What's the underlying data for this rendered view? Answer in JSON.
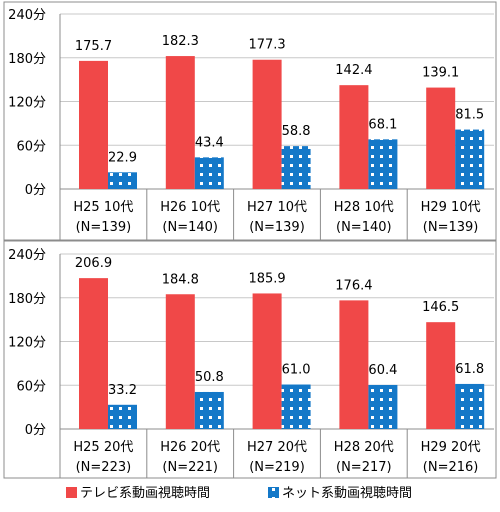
{
  "legend": [
    {
      "label": "テレビ系動画視聴時間",
      "color": "#f04848",
      "pattern": "solid"
    },
    {
      "label": "ネット系動画視聴時間",
      "color": "#1478c8",
      "pattern": "dotted"
    }
  ],
  "chart_data": [
    {
      "type": "bar",
      "ylim": [
        0,
        240
      ],
      "yticks": [
        "0分",
        "60分",
        "120分",
        "180分",
        "240分"
      ],
      "categories": [
        {
          "line1": "H25 10代",
          "line2": "(N=139)"
        },
        {
          "line1": "H26 10代",
          "line2": "(N=140)"
        },
        {
          "line1": "H27 10代",
          "line2": "(N=139)"
        },
        {
          "line1": "H28 10代",
          "line2": "(N=140)"
        },
        {
          "line1": "H29 10代",
          "line2": "(N=139)"
        }
      ],
      "series": [
        {
          "name": "テレビ系動画視聴時間",
          "values": [
            175.7,
            182.3,
            177.3,
            142.4,
            139.1
          ],
          "labels": [
            "175.7",
            "182.3",
            "177.3",
            "142.4",
            "139.1"
          ]
        },
        {
          "name": "ネット系動画視聴時間",
          "values": [
            22.9,
            43.4,
            58.8,
            68.1,
            81.5
          ],
          "labels": [
            "22.9",
            "43.4",
            "58.8",
            "68.1",
            "81.5"
          ]
        }
      ],
      "grid": true
    },
    {
      "type": "bar",
      "ylim": [
        0,
        240
      ],
      "yticks": [
        "0分",
        "60分",
        "120分",
        "180分",
        "240分"
      ],
      "categories": [
        {
          "line1": "H25 20代",
          "line2": "(N=223)"
        },
        {
          "line1": "H26 20代",
          "line2": "(N=221)"
        },
        {
          "line1": "H27 20代",
          "line2": "(N=219)"
        },
        {
          "line1": "H28 20代",
          "line2": "(N=217)"
        },
        {
          "line1": "H29 20代",
          "line2": "(N=216)"
        }
      ],
      "series": [
        {
          "name": "テレビ系動画視聴時間",
          "values": [
            206.9,
            184.8,
            185.9,
            176.4,
            146.5
          ],
          "labels": [
            "206.9",
            "184.8",
            "185.9",
            "176.4",
            "146.5"
          ]
        },
        {
          "name": "ネット系動画視聴時間",
          "values": [
            33.2,
            50.8,
            61.0,
            60.4,
            61.8
          ],
          "labels": [
            "33.2",
            "50.8",
            "61.0",
            "60.4",
            "61.8"
          ]
        }
      ],
      "grid": true
    }
  ]
}
